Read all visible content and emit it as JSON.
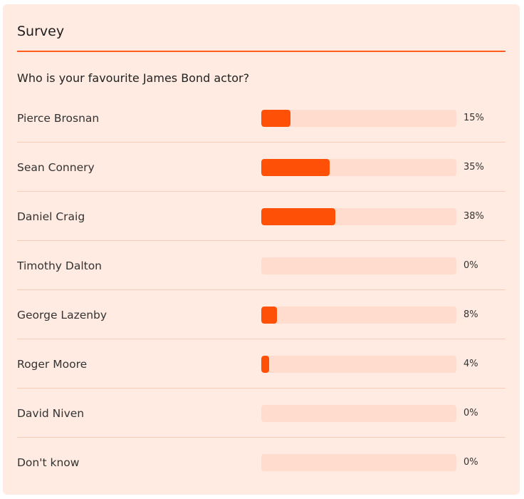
{
  "survey": {
    "title": "Survey",
    "question": "Who is your favourite James Bond actor?",
    "accent_color": "#ff5007",
    "track_color": "#ffdccd",
    "options": [
      {
        "label": "Pierce Brosnan",
        "percent": 15,
        "percent_label": "15%"
      },
      {
        "label": "Sean Connery",
        "percent": 35,
        "percent_label": "35%"
      },
      {
        "label": "Daniel Craig",
        "percent": 38,
        "percent_label": "38%"
      },
      {
        "label": "Timothy Dalton",
        "percent": 0,
        "percent_label": "0%"
      },
      {
        "label": "George Lazenby",
        "percent": 8,
        "percent_label": "8%"
      },
      {
        "label": "Roger Moore",
        "percent": 4,
        "percent_label": "4%"
      },
      {
        "label": "David Niven",
        "percent": 0,
        "percent_label": "0%"
      },
      {
        "label": "Don't know",
        "percent": 0,
        "percent_label": "0%"
      }
    ]
  }
}
